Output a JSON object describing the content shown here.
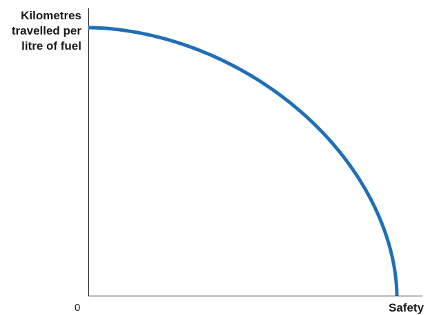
{
  "chart_data": {
    "type": "line",
    "title": "",
    "xlabel": "Safety",
    "ylabel": "Kilometres\ntravelled per\nlitre of fuel",
    "origin_label": "0",
    "xlim": [
      0,
      1
    ],
    "ylim": [
      0,
      1
    ],
    "grid": false,
    "legend": "none",
    "series": [
      {
        "values": [
          {
            "x": 0.0,
            "y": 1.0
          },
          {
            "x": 1.0,
            "y": 0.0
          }
        ],
        "shape": "concave-frontier",
        "color": "#1f6fb8"
      }
    ]
  }
}
